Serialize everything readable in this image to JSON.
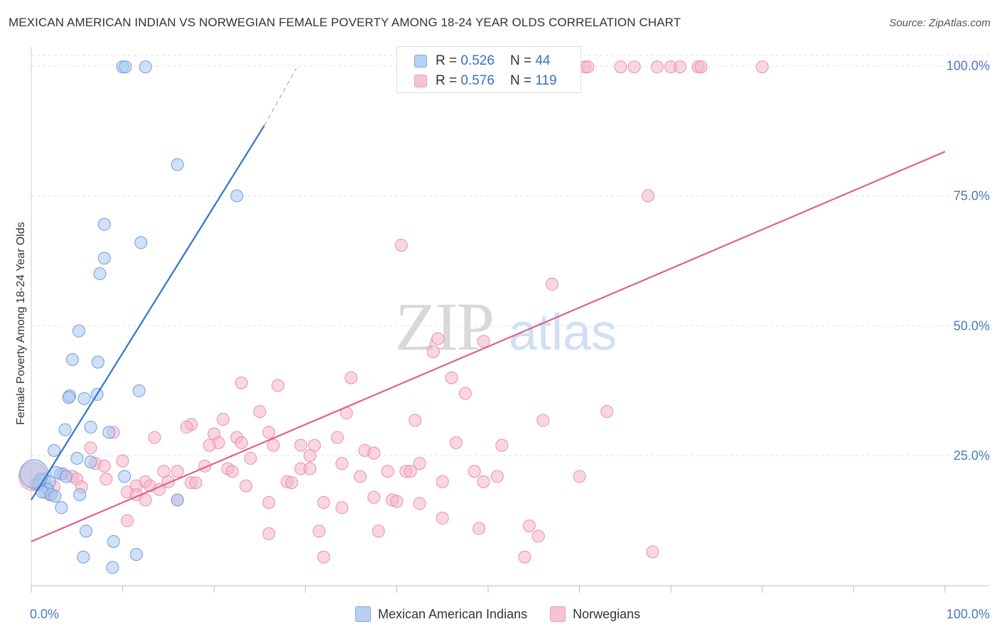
{
  "header": {
    "title": "MEXICAN AMERICAN INDIAN VS NORWEGIAN FEMALE POVERTY AMONG 18-24 YEAR OLDS CORRELATION CHART",
    "source": "Source: ZipAtlas.com"
  },
  "watermark": {
    "zip": "ZIP",
    "atlas": "atlas"
  },
  "legend_top": {
    "r_label": "R = ",
    "n_label": "N = ",
    "rows": [
      {
        "r": "0.526",
        "n": "44"
      },
      {
        "r": "0.576",
        "n": "119"
      }
    ]
  },
  "chart_data": {
    "type": "scatter",
    "title": "MEXICAN AMERICAN INDIAN VS NORWEGIAN FEMALE POVERTY AMONG 18-24 YEAR OLDS CORRELATION CHART",
    "xlabel": "",
    "ylabel": "Female Poverty Among 18-24 Year Olds",
    "xlim": [
      0,
      100
    ],
    "ylim": [
      0,
      102
    ],
    "x_tick_labels": [
      "0.0%",
      "100.0%"
    ],
    "y_ticks": [
      25,
      50,
      75,
      100
    ],
    "y_tick_labels": [
      "25.0%",
      "50.0%",
      "75.0%",
      "100.0%"
    ],
    "grid": true,
    "legend_position": "bottom",
    "colors": {
      "blue_fill": "#a9c6ef",
      "blue_stroke": "#6f9de0",
      "blue_line": "#3374cc",
      "pink_fill": "#f4b5c9",
      "pink_stroke": "#ea8fad",
      "pink_line": "#e0608e",
      "tick_text": "#4a78c4",
      "grid": "#e2e2e2"
    },
    "series": [
      {
        "name": "Mexican American Indians",
        "r": 0.526,
        "n": 44,
        "trend": {
          "x": [
            0,
            25.5
          ],
          "y": [
            16.5,
            88.5
          ],
          "dashed_to": {
            "x": 29,
            "y": 99.5
          }
        },
        "points": [
          {
            "x": 10,
            "y": 99.8
          },
          {
            "x": 10.3,
            "y": 99.8
          },
          {
            "x": 12.5,
            "y": 99.8
          },
          {
            "x": 16,
            "y": 81
          },
          {
            "x": 22.5,
            "y": 75
          },
          {
            "x": 8,
            "y": 69.5
          },
          {
            "x": 12,
            "y": 66
          },
          {
            "x": 8,
            "y": 63
          },
          {
            "x": 7.5,
            "y": 60
          },
          {
            "x": 5.2,
            "y": 49
          },
          {
            "x": 4.5,
            "y": 43.5
          },
          {
            "x": 7.3,
            "y": 43
          },
          {
            "x": 11.8,
            "y": 37.5
          },
          {
            "x": 4.2,
            "y": 36.5
          },
          {
            "x": 4.1,
            "y": 36.2
          },
          {
            "x": 7.2,
            "y": 36.8
          },
          {
            "x": 5.8,
            "y": 36
          },
          {
            "x": 3.7,
            "y": 30
          },
          {
            "x": 6.5,
            "y": 30.5
          },
          {
            "x": 8.5,
            "y": 29.5
          },
          {
            "x": 2.5,
            "y": 26
          },
          {
            "x": 5,
            "y": 24.5
          },
          {
            "x": 6.5,
            "y": 23.8
          },
          {
            "x": 3.2,
            "y": 21.5
          },
          {
            "x": 3.8,
            "y": 21
          },
          {
            "x": 1.4,
            "y": 20.5
          },
          {
            "x": 2,
            "y": 20
          },
          {
            "x": 1,
            "y": 20.2
          },
          {
            "x": 0.8,
            "y": 19.5
          },
          {
            "x": 1.8,
            "y": 18.5
          },
          {
            "x": 1.2,
            "y": 18
          },
          {
            "x": 2.2,
            "y": 17.5
          },
          {
            "x": 2.6,
            "y": 17.2
          },
          {
            "x": 5.3,
            "y": 17.5
          },
          {
            "x": 3.3,
            "y": 15
          },
          {
            "x": 6,
            "y": 10.5
          },
          {
            "x": 9,
            "y": 8.5
          },
          {
            "x": 5.7,
            "y": 5.5
          },
          {
            "x": 11.5,
            "y": 6
          },
          {
            "x": 8.9,
            "y": 3.5
          },
          {
            "x": 16,
            "y": 16.5
          },
          {
            "x": 10.2,
            "y": 21
          },
          {
            "x": 2.7,
            "y": 21.8
          },
          {
            "x": 0.3,
            "y": 21.5,
            "size": "large"
          }
        ]
      },
      {
        "name": "Norwegians",
        "r": 0.576,
        "n": 119,
        "trend": {
          "x": [
            0,
            100
          ],
          "y": [
            8.5,
            83.5
          ]
        },
        "points": [
          {
            "x": 57,
            "y": 99.5
          },
          {
            "x": 58,
            "y": 99.5
          },
          {
            "x": 59,
            "y": 99.5
          },
          {
            "x": 60.6,
            "y": 99.8
          },
          {
            "x": 60.9,
            "y": 99.8
          },
          {
            "x": 64.5,
            "y": 99.8
          },
          {
            "x": 66,
            "y": 99.8
          },
          {
            "x": 68.5,
            "y": 99.8
          },
          {
            "x": 70,
            "y": 99.8
          },
          {
            "x": 71,
            "y": 99.8
          },
          {
            "x": 73,
            "y": 99.8
          },
          {
            "x": 73.3,
            "y": 99.8
          },
          {
            "x": 80,
            "y": 99.8
          },
          {
            "x": 67.5,
            "y": 75
          },
          {
            "x": 40.5,
            "y": 65.5
          },
          {
            "x": 57,
            "y": 58
          },
          {
            "x": 44.5,
            "y": 47.5
          },
          {
            "x": 44,
            "y": 45
          },
          {
            "x": 49.5,
            "y": 47
          },
          {
            "x": 35,
            "y": 40
          },
          {
            "x": 46,
            "y": 40
          },
          {
            "x": 23,
            "y": 39
          },
          {
            "x": 27,
            "y": 38.5
          },
          {
            "x": 47.5,
            "y": 37
          },
          {
            "x": 25,
            "y": 33.5
          },
          {
            "x": 34.5,
            "y": 33.2
          },
          {
            "x": 63,
            "y": 33.5
          },
          {
            "x": 21,
            "y": 32
          },
          {
            "x": 42,
            "y": 31.8
          },
          {
            "x": 56,
            "y": 31.8
          },
          {
            "x": 17.5,
            "y": 31
          },
          {
            "x": 17,
            "y": 30.5
          },
          {
            "x": 9,
            "y": 29.5
          },
          {
            "x": 20,
            "y": 29.2
          },
          {
            "x": 26,
            "y": 29.5
          },
          {
            "x": 13.5,
            "y": 28.5
          },
          {
            "x": 22.5,
            "y": 28.5
          },
          {
            "x": 33.5,
            "y": 28.5
          },
          {
            "x": 20.5,
            "y": 27.5
          },
          {
            "x": 23,
            "y": 27.5
          },
          {
            "x": 19.5,
            "y": 27
          },
          {
            "x": 26.5,
            "y": 27
          },
          {
            "x": 29.5,
            "y": 27
          },
          {
            "x": 31,
            "y": 27
          },
          {
            "x": 46.5,
            "y": 27.5
          },
          {
            "x": 51.5,
            "y": 27
          },
          {
            "x": 6.5,
            "y": 26.5
          },
          {
            "x": 36.5,
            "y": 26
          },
          {
            "x": 37.5,
            "y": 25.5
          },
          {
            "x": 30.5,
            "y": 25
          },
          {
            "x": 24,
            "y": 24.5
          },
          {
            "x": 10,
            "y": 24
          },
          {
            "x": 7,
            "y": 23.5
          },
          {
            "x": 8,
            "y": 23
          },
          {
            "x": 19,
            "y": 23
          },
          {
            "x": 21.5,
            "y": 22.5
          },
          {
            "x": 29.5,
            "y": 22.5
          },
          {
            "x": 30.5,
            "y": 22.5
          },
          {
            "x": 34,
            "y": 23.5
          },
          {
            "x": 42.5,
            "y": 23.5
          },
          {
            "x": 14.5,
            "y": 22
          },
          {
            "x": 16,
            "y": 22
          },
          {
            "x": 22,
            "y": 22
          },
          {
            "x": 39,
            "y": 22
          },
          {
            "x": 41,
            "y": 22
          },
          {
            "x": 41.5,
            "y": 22
          },
          {
            "x": 48.5,
            "y": 22
          },
          {
            "x": 36,
            "y": 21
          },
          {
            "x": 51,
            "y": 21
          },
          {
            "x": 3.5,
            "y": 21.5
          },
          {
            "x": 4.5,
            "y": 21
          },
          {
            "x": 5,
            "y": 20.5
          },
          {
            "x": 8.2,
            "y": 20.5
          },
          {
            "x": 12.5,
            "y": 20
          },
          {
            "x": 15,
            "y": 20
          },
          {
            "x": 17.5,
            "y": 19.8
          },
          {
            "x": 18,
            "y": 19.8
          },
          {
            "x": 28,
            "y": 20
          },
          {
            "x": 28.5,
            "y": 19.8
          },
          {
            "x": 45,
            "y": 20
          },
          {
            "x": 49.5,
            "y": 20
          },
          {
            "x": 2.5,
            "y": 19
          },
          {
            "x": 5.5,
            "y": 19
          },
          {
            "x": 11.5,
            "y": 19.2
          },
          {
            "x": 13,
            "y": 19.2
          },
          {
            "x": 14,
            "y": 18.5
          },
          {
            "x": 23.5,
            "y": 19.2
          },
          {
            "x": 1.5,
            "y": 18
          },
          {
            "x": 2,
            "y": 17.5
          },
          {
            "x": 10.5,
            "y": 18
          },
          {
            "x": 11.5,
            "y": 17.5
          },
          {
            "x": 12.5,
            "y": 16.5
          },
          {
            "x": 16,
            "y": 16.5
          },
          {
            "x": 26,
            "y": 16
          },
          {
            "x": 32,
            "y": 16
          },
          {
            "x": 34,
            "y": 15
          },
          {
            "x": 37.5,
            "y": 17
          },
          {
            "x": 39.5,
            "y": 16.5
          },
          {
            "x": 40,
            "y": 16.2
          },
          {
            "x": 42.5,
            "y": 15.8
          },
          {
            "x": 10.5,
            "y": 12.5
          },
          {
            "x": 26,
            "y": 10
          },
          {
            "x": 31.5,
            "y": 10.5
          },
          {
            "x": 38,
            "y": 10.5
          },
          {
            "x": 45,
            "y": 13
          },
          {
            "x": 49,
            "y": 11
          },
          {
            "x": 54.5,
            "y": 11.5
          },
          {
            "x": 55.5,
            "y": 9.5
          },
          {
            "x": 32,
            "y": 5.5
          },
          {
            "x": 54,
            "y": 5.5
          },
          {
            "x": 68,
            "y": 6.5
          },
          {
            "x": 60,
            "y": 21
          },
          {
            "x": 0.2,
            "y": 21,
            "size": "large"
          },
          {
            "x": 0.5,
            "y": 19.5
          },
          {
            "x": 1,
            "y": 20.5
          }
        ]
      }
    ]
  }
}
